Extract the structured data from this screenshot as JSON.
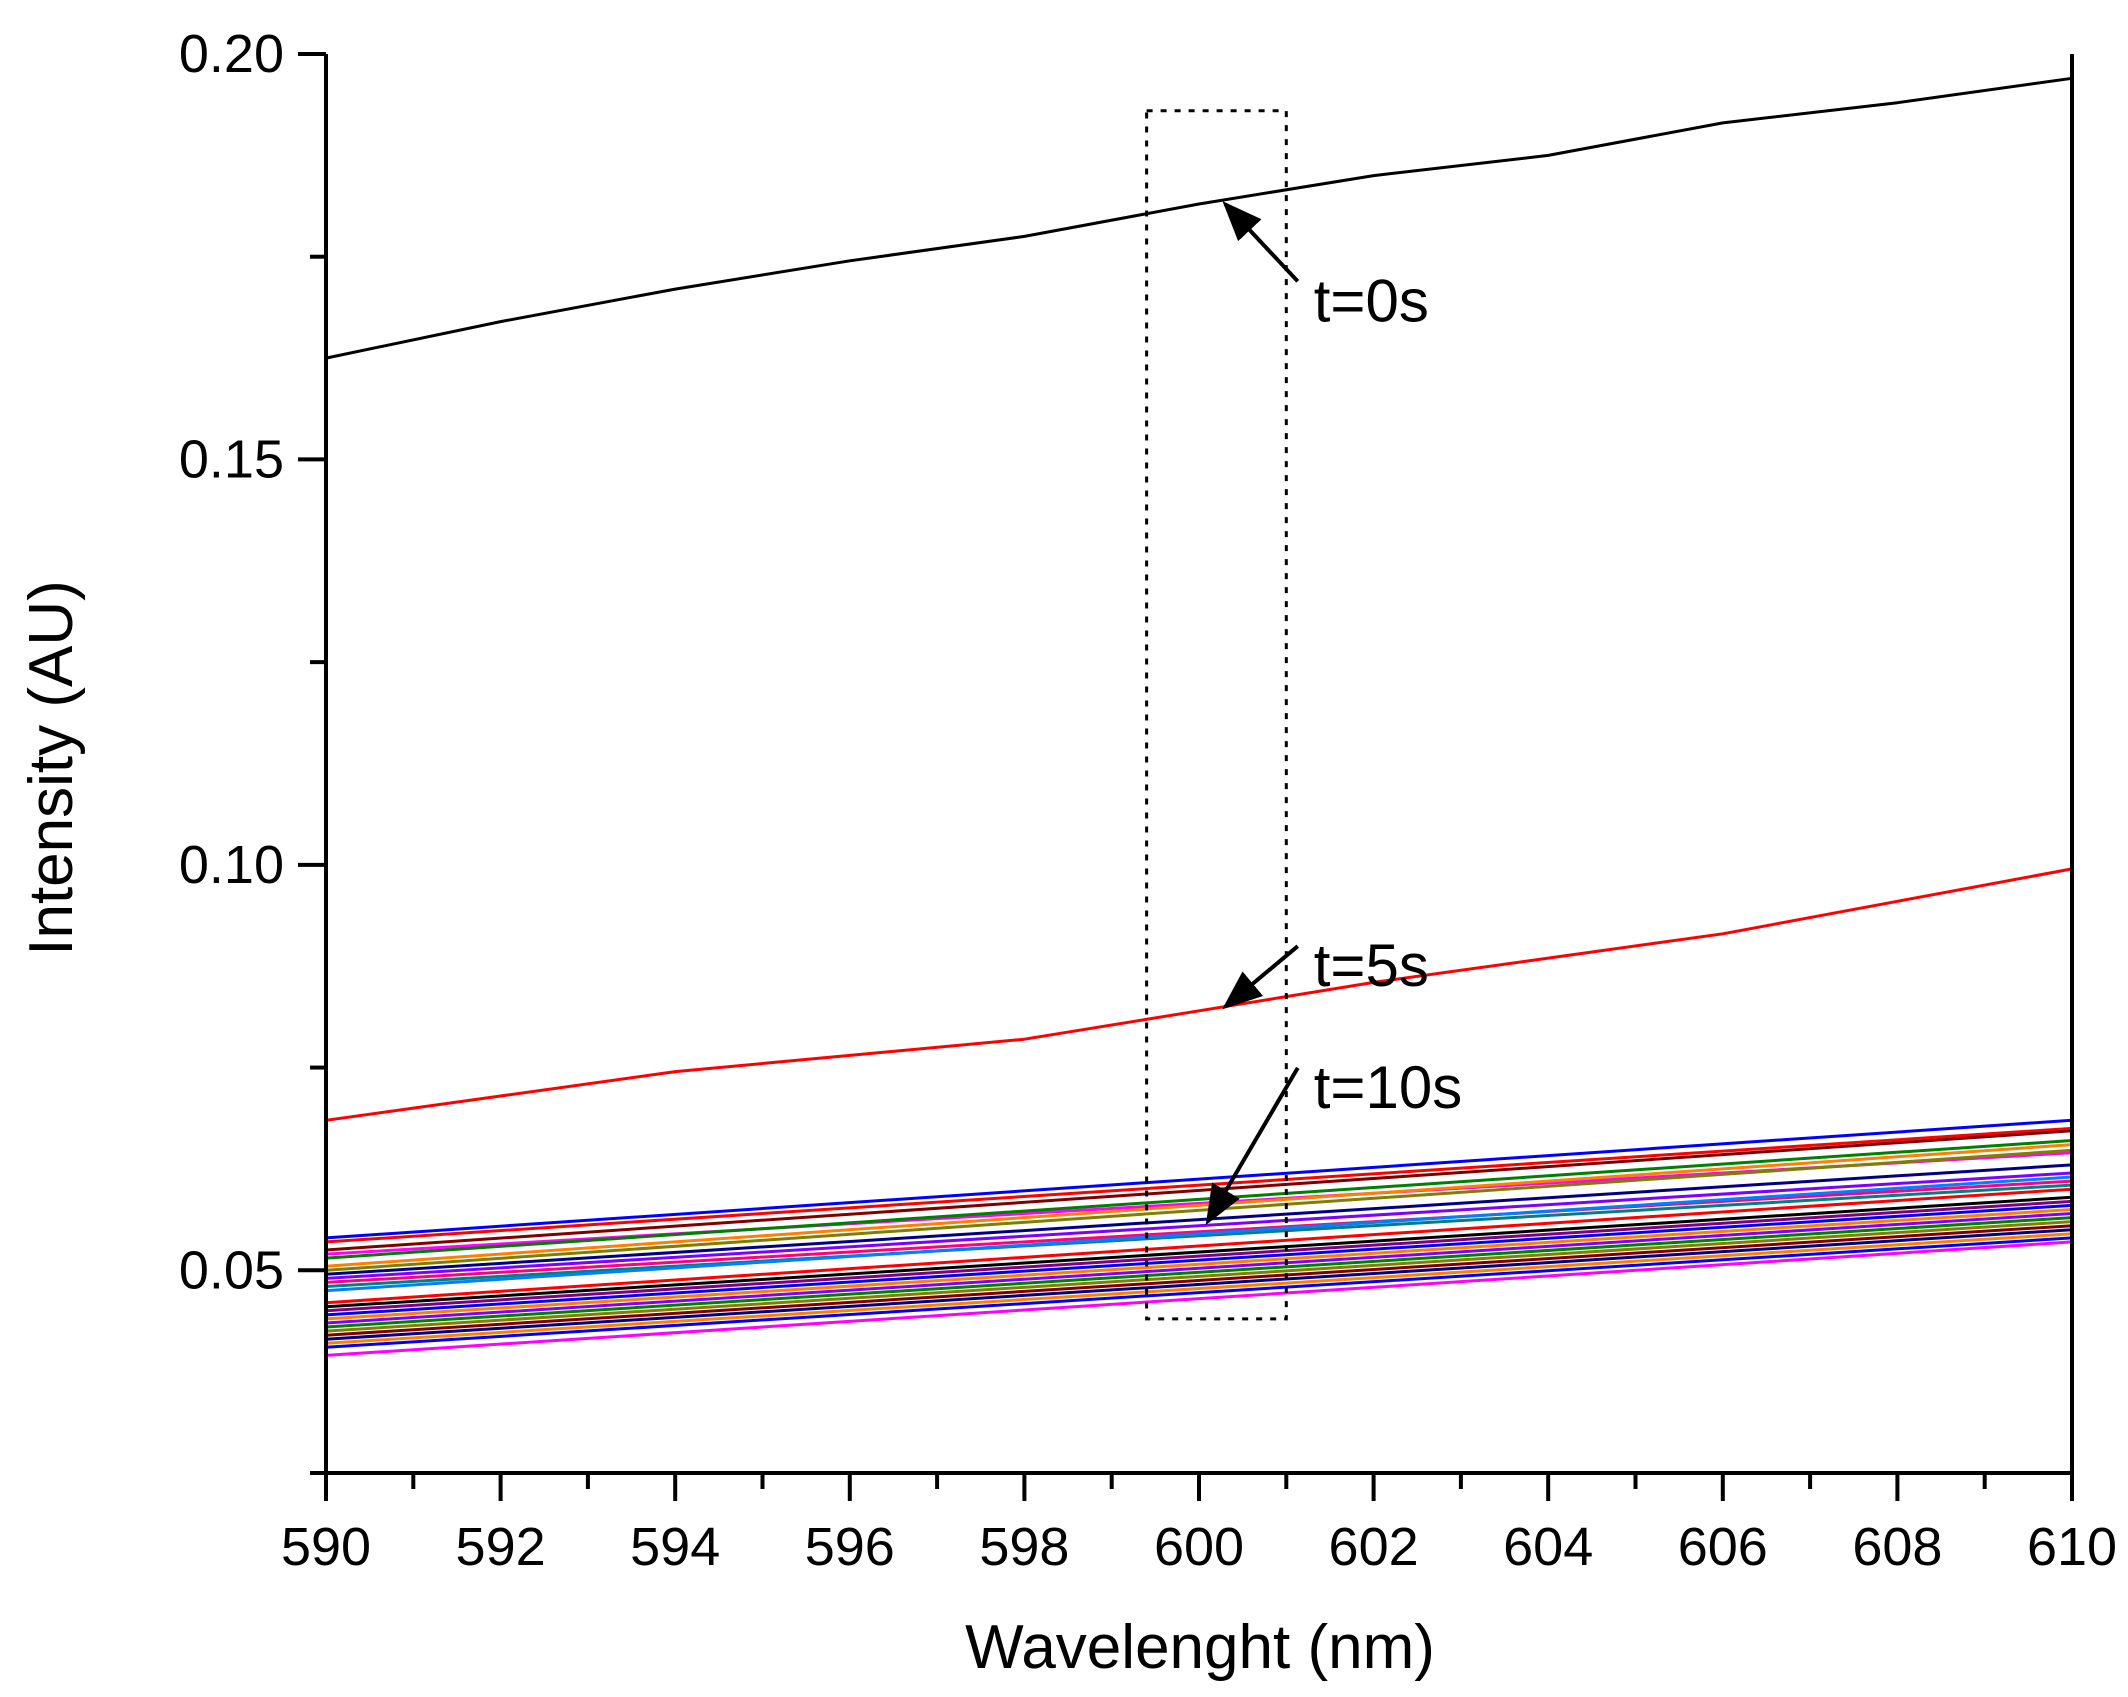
{
  "chart_data": {
    "type": "line",
    "title": "",
    "xlabel": "Wavelenght (nm)",
    "ylabel": "Intensity (AU)",
    "xlim": [
      590,
      610
    ],
    "ylim": [
      0.025,
      0.2
    ],
    "x_major_ticks": [
      590,
      592,
      594,
      596,
      598,
      600,
      602,
      604,
      606,
      608,
      610
    ],
    "x_tick_labels": [
      "590",
      "592",
      "594",
      "596",
      "598",
      "600",
      "602",
      "604",
      "606",
      "608",
      "610"
    ],
    "y_major_ticks": [
      0.05,
      0.1,
      0.15,
      0.2
    ],
    "y_tick_labels": [
      "0.05",
      "0.10",
      "0.15",
      "0.20"
    ],
    "x_minor_step": 1,
    "y_minor_step": 0.025,
    "grid": false,
    "legend": "none",
    "highlight_box": {
      "x_range": [
        599.4,
        601.0
      ],
      "y_range": [
        0.044,
        0.193
      ],
      "style": "dotted"
    },
    "series": [
      {
        "name": "t=0s",
        "color": "#000000",
        "x": [
          590,
          592,
          594,
          596,
          598,
          600,
          602,
          604,
          606,
          608,
          610
        ],
        "values": [
          0.1625,
          0.167,
          0.171,
          0.1745,
          0.1775,
          0.1815,
          0.185,
          0.1875,
          0.1915,
          0.194,
          0.197
        ]
      },
      {
        "name": "t=5s",
        "color": "#ff0000",
        "x": [
          590,
          592,
          594,
          596,
          598,
          600,
          602,
          604,
          606,
          608,
          610
        ],
        "values": [
          0.0685,
          0.0715,
          0.0745,
          0.0765,
          0.0785,
          0.082,
          0.0855,
          0.0885,
          0.0915,
          0.0955,
          0.0995
        ]
      },
      {
        "name": "t=10s",
        "color": "#0000ff",
        "x": [
          590,
          610
        ],
        "values": [
          0.054,
          0.0685
        ]
      },
      {
        "name": "",
        "color": "#ff0000",
        "x": [
          590,
          610
        ],
        "values": [
          0.0535,
          0.0675
        ]
      },
      {
        "name": "",
        "color": "#800000",
        "x": [
          590,
          610
        ],
        "values": [
          0.0525,
          0.0672
        ]
      },
      {
        "name": "",
        "color": "#ff00ff",
        "x": [
          590,
          610
        ],
        "values": [
          0.052,
          0.0645
        ]
      },
      {
        "name": "",
        "color": "#008000",
        "x": [
          590,
          610
        ],
        "values": [
          0.0515,
          0.066
        ]
      },
      {
        "name": "",
        "color": "#ff8000",
        "x": [
          590,
          610
        ],
        "values": [
          0.0505,
          0.0655
        ]
      },
      {
        "name": "",
        "color": "#808000",
        "x": [
          590,
          610
        ],
        "values": [
          0.05,
          0.0648
        ]
      },
      {
        "name": "",
        "color": "#000080",
        "x": [
          590,
          610
        ],
        "values": [
          0.0495,
          0.063
        ]
      },
      {
        "name": "",
        "color": "#8000ff",
        "x": [
          590,
          610
        ],
        "values": [
          0.049,
          0.062
        ]
      },
      {
        "name": "",
        "color": "#ff0080",
        "x": [
          590,
          610
        ],
        "values": [
          0.0485,
          0.061
        ]
      },
      {
        "name": "",
        "color": "#008080",
        "x": [
          590,
          610
        ],
        "values": [
          0.048,
          0.0605
        ]
      },
      {
        "name": "",
        "color": "#0080ff",
        "x": [
          590,
          610
        ],
        "values": [
          0.0475,
          0.0615
        ]
      },
      {
        "name": "",
        "color": "#ff0000",
        "x": [
          590,
          610
        ],
        "values": [
          0.046,
          0.06
        ]
      },
      {
        "name": "",
        "color": "#000000",
        "x": [
          590,
          610
        ],
        "values": [
          0.0455,
          0.059
        ]
      },
      {
        "name": "",
        "color": "#800080",
        "x": [
          590,
          610
        ],
        "values": [
          0.045,
          0.0585
        ]
      },
      {
        "name": "",
        "color": "#0000ff",
        "x": [
          590,
          610
        ],
        "values": [
          0.0445,
          0.058
        ]
      },
      {
        "name": "",
        "color": "#ff8000",
        "x": [
          590,
          610
        ],
        "values": [
          0.044,
          0.0575
        ]
      },
      {
        "name": "",
        "color": "#8000ff",
        "x": [
          590,
          610
        ],
        "values": [
          0.0435,
          0.057
        ]
      },
      {
        "name": "",
        "color": "#008000",
        "x": [
          590,
          610
        ],
        "values": [
          0.043,
          0.0565
        ]
      },
      {
        "name": "",
        "color": "#808000",
        "x": [
          590,
          610
        ],
        "values": [
          0.0425,
          0.056
        ]
      },
      {
        "name": "",
        "color": "#800000",
        "x": [
          590,
          610
        ],
        "values": [
          0.042,
          0.0555
        ]
      },
      {
        "name": "",
        "color": "#000080",
        "x": [
          590,
          610
        ],
        "values": [
          0.0415,
          0.055
        ]
      },
      {
        "name": "",
        "color": "#ff8000",
        "x": [
          590,
          610
        ],
        "values": [
          0.041,
          0.0545
        ]
      },
      {
        "name": "",
        "color": "#0000ff",
        "x": [
          590,
          610
        ],
        "values": [
          0.0405,
          0.054
        ]
      },
      {
        "name": "",
        "color": "#ff00ff",
        "x": [
          590,
          610
        ],
        "values": [
          0.0395,
          0.0535
        ]
      }
    ],
    "annotations": [
      {
        "text": "t=0s",
        "label_x": 601.2,
        "label_y": 0.1695,
        "target_x": 600.3,
        "target_y": 0.1815
      },
      {
        "text": "t=5s",
        "label_x": 601.2,
        "label_y": 0.0875,
        "target_x": 600.3,
        "target_y": 0.0825
      },
      {
        "text": "t=10s",
        "label_x": 601.2,
        "label_y": 0.0725,
        "target_x": 600.1,
        "target_y": 0.056
      }
    ]
  }
}
